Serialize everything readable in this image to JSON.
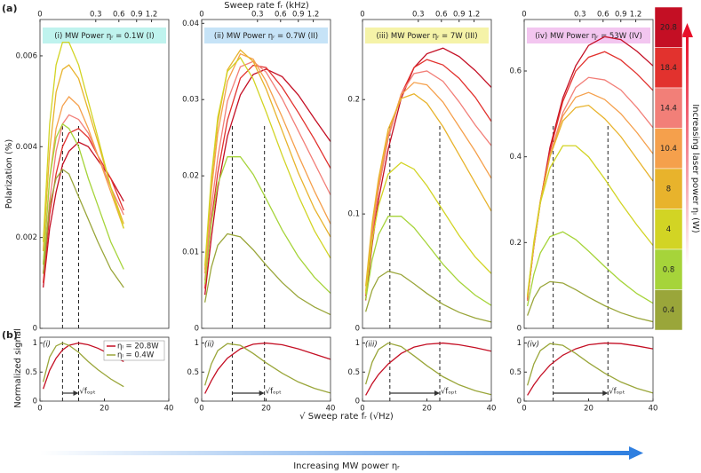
{
  "figure": {
    "label_a": "(a)",
    "label_b": "(b)",
    "top_axis_label": "Sweep rate fᵣ (kHz)",
    "x_label": "√ Sweep rate fᵣ (√Hz)",
    "y_label_top": "Polarization (%)",
    "y_label_bottom": "Normalized signal",
    "laser_arrow_label": "Increasing laser power ηₗ (W)",
    "mw_arrow_label": "Increasing MW power ηᵣ"
  },
  "chart_data": [
    {
      "type": "line",
      "title": "(i) MW Power ηᵣ = 0.1W (I)",
      "title_bg": "#bff3ee",
      "x": [
        1,
        3,
        5,
        7,
        9,
        12,
        15,
        18,
        22,
        26
      ],
      "xlim": [
        0,
        40
      ],
      "ylim": [
        0,
        0.0068
      ],
      "yticks": [
        0,
        0.002,
        0.004,
        0.006
      ],
      "x2ticks": [
        0,
        0.3,
        0.6,
        0.9,
        1.2
      ],
      "x2scale": "sqrt",
      "vlines": [
        7,
        12
      ],
      "series": [
        {
          "name": "20.8",
          "color": "#c40f24",
          "values": [
            0.0009,
            0.0022,
            0.003,
            0.0036,
            0.0039,
            0.0041,
            0.004,
            0.0037,
            0.0033,
            0.0028
          ]
        },
        {
          "name": "18.4",
          "color": "#e2322e",
          "values": [
            0.001,
            0.0025,
            0.0034,
            0.004,
            0.0043,
            0.0044,
            0.0042,
            0.0038,
            0.0033,
            0.0026
          ]
        },
        {
          "name": "14.4",
          "color": "#f27f78",
          "values": [
            0.0012,
            0.0028,
            0.0039,
            0.0045,
            0.0047,
            0.0046,
            0.0043,
            0.0038,
            0.0031,
            0.0025
          ]
        },
        {
          "name": "10.4",
          "color": "#f5a04c",
          "values": [
            0.0014,
            0.0033,
            0.0044,
            0.0049,
            0.0051,
            0.0049,
            0.0044,
            0.0038,
            0.003,
            0.0022
          ]
        },
        {
          "name": "8",
          "color": "#e8b32c",
          "values": [
            0.0017,
            0.0039,
            0.0052,
            0.0057,
            0.0058,
            0.0055,
            0.0048,
            0.0041,
            0.0031,
            0.0023
          ]
        },
        {
          "name": "4",
          "color": "#d2d424",
          "values": [
            0.0019,
            0.0045,
            0.0058,
            0.0063,
            0.0063,
            0.0058,
            0.005,
            0.0042,
            0.0031,
            0.0022
          ]
        },
        {
          "name": "0.8",
          "color": "#a6d43a",
          "values": [
            0.0014,
            0.0033,
            0.0042,
            0.0045,
            0.0044,
            0.004,
            0.0033,
            0.0027,
            0.0019,
            0.0013
          ]
        },
        {
          "name": "0.4",
          "color": "#9aa63a",
          "values": [
            0.0012,
            0.0027,
            0.0033,
            0.0035,
            0.0034,
            0.0029,
            0.0024,
            0.0019,
            0.0013,
            0.0009
          ]
        }
      ]
    },
    {
      "type": "line",
      "title": "(ii) MW Power ηᵣ = 0.7W (II)",
      "title_bg": "#c6e3f7",
      "x": [
        1,
        3,
        5,
        8,
        12,
        16,
        20,
        25,
        30,
        35,
        40
      ],
      "xlim": [
        0,
        40
      ],
      "ylim": [
        0,
        0.0405
      ],
      "yticks": [
        0,
        0.01,
        0.02,
        0.03,
        0.04
      ],
      "x2ticks": [
        0,
        0.3,
        0.6,
        0.9,
        1.2
      ],
      "x2scale": "sqrt",
      "vlines": [
        9.5,
        19.5
      ],
      "series": [
        {
          "color": "#c40f24",
          "values": [
            0.0044,
            0.0119,
            0.0184,
            0.0252,
            0.0306,
            0.0333,
            0.034,
            0.033,
            0.0306,
            0.0275,
            0.0245
          ]
        },
        {
          "color": "#e2322e",
          "values": [
            0.0052,
            0.0141,
            0.0204,
            0.0273,
            0.0328,
            0.0345,
            0.0342,
            0.0316,
            0.0283,
            0.0248,
            0.021
          ]
        },
        {
          "color": "#f27f78",
          "values": [
            0.0063,
            0.0158,
            0.0224,
            0.0298,
            0.0343,
            0.035,
            0.0336,
            0.0301,
            0.0259,
            0.0217,
            0.0175
          ]
        },
        {
          "color": "#f5a04c",
          "values": [
            0.0072,
            0.018,
            0.0256,
            0.0324,
            0.036,
            0.0353,
            0.0324,
            0.0277,
            0.0227,
            0.018,
            0.0137
          ]
        },
        {
          "color": "#e8b32c",
          "values": [
            0.0077,
            0.0193,
            0.027,
            0.0339,
            0.0365,
            0.035,
            0.0314,
            0.0259,
            0.0204,
            0.0157,
            0.012
          ]
        },
        {
          "color": "#d2d424",
          "values": [
            0.0082,
            0.0199,
            0.0277,
            0.0337,
            0.0355,
            0.0327,
            0.0284,
            0.0227,
            0.0174,
            0.0128,
            0.0092
          ]
        },
        {
          "color": "#a6d43a",
          "values": [
            0.0058,
            0.0138,
            0.0189,
            0.0225,
            0.0225,
            0.0202,
            0.017,
            0.0129,
            0.0094,
            0.0067,
            0.0046
          ]
        },
        {
          "color": "#9aa63a",
          "values": [
            0.0034,
            0.008,
            0.0109,
            0.0124,
            0.012,
            0.0103,
            0.0083,
            0.006,
            0.0041,
            0.0028,
            0.0018
          ]
        }
      ]
    },
    {
      "type": "line",
      "title": "(iii) MW Power ηᵣ = 7W (III)",
      "title_bg": "#f5f3a8",
      "x": [
        1,
        3,
        5,
        8,
        12,
        16,
        20,
        25,
        30,
        35,
        40
      ],
      "xlim": [
        0,
        40
      ],
      "ylim": [
        0,
        0.27
      ],
      "yticks": [
        0,
        0.1,
        0.2
      ],
      "x2ticks": [
        0,
        0.3,
        0.6,
        0.9,
        1.2
      ],
      "x2scale": "sqrt",
      "vlines": [
        8.5,
        24
      ],
      "series": [
        {
          "color": "#c40f24",
          "values": [
            0.0245,
            0.0735,
            0.1127,
            0.1568,
            0.2009,
            0.2279,
            0.2401,
            0.245,
            0.2377,
            0.2254,
            0.2107
          ]
        },
        {
          "color": "#e2322e",
          "values": [
            0.0282,
            0.0776,
            0.1222,
            0.1669,
            0.2045,
            0.228,
            0.235,
            0.2303,
            0.2186,
            0.2021,
            0.181
          ]
        },
        {
          "color": "#f27f78",
          "values": [
            0.0293,
            0.0833,
            0.1215,
            0.1665,
            0.2048,
            0.2228,
            0.225,
            0.216,
            0.198,
            0.1778,
            0.1598
          ]
        },
        {
          "color": "#f5a04c",
          "values": [
            0.0323,
            0.0882,
            0.1269,
            0.1699,
            0.2043,
            0.215,
            0.2129,
            0.1978,
            0.1763,
            0.1548,
            0.1312
          ]
        },
        {
          "color": "#e8b32c",
          "values": [
            0.0369,
            0.0923,
            0.1312,
            0.1743,
            0.2009,
            0.205,
            0.1968,
            0.1763,
            0.1517,
            0.1271,
            0.1025
          ]
        },
        {
          "color": "#d2d424",
          "values": [
            0.0305,
            0.0769,
            0.1073,
            0.1349,
            0.145,
            0.1392,
            0.1247,
            0.103,
            0.0812,
            0.0624,
            0.0479
          ]
        },
        {
          "color": "#a6d43a",
          "values": [
            0.025,
            0.06,
            0.082,
            0.098,
            0.098,
            0.088,
            0.074,
            0.056,
            0.041,
            0.029,
            0.02
          ]
        },
        {
          "color": "#9aa63a",
          "values": [
            0.0145,
            0.0335,
            0.0445,
            0.05,
            0.047,
            0.039,
            0.0305,
            0.021,
            0.014,
            0.009,
            0.0055
          ]
        }
      ]
    },
    {
      "type": "line",
      "title": "(iv) MW Power ηᵣ = 53W (IV)",
      "title_bg": "#f3c6f0",
      "x": [
        1,
        3,
        5,
        8,
        12,
        16,
        20,
        25,
        30,
        35,
        40
      ],
      "xlim": [
        0,
        40
      ],
      "ylim": [
        0,
        0.72
      ],
      "yticks": [
        0,
        0.2,
        0.4,
        0.6
      ],
      "x2ticks": [
        0,
        0.3,
        0.6,
        0.9,
        1.2
      ],
      "x2scale": "sqrt",
      "vlines": [
        9,
        26
      ],
      "series": [
        {
          "color": "#c40f24",
          "values": [
            0.068,
            0.1904,
            0.2924,
            0.4216,
            0.5372,
            0.612,
            0.6596,
            0.68,
            0.6732,
            0.646,
            0.612
          ]
        },
        {
          "color": "#e2322e",
          "values": [
            0.0645,
            0.1935,
            0.2967,
            0.4128,
            0.5289,
            0.5999,
            0.6321,
            0.645,
            0.6257,
            0.5934,
            0.5547
          ]
        },
        {
          "color": "#f27f78",
          "values": [
            0.0644,
            0.1931,
            0.2925,
            0.4037,
            0.5031,
            0.5616,
            0.585,
            0.5792,
            0.5558,
            0.5148,
            0.468
          ]
        },
        {
          "color": "#f5a04c",
          "values": [
            0.0715,
            0.1925,
            0.2915,
            0.4015,
            0.495,
            0.539,
            0.55,
            0.5335,
            0.5005,
            0.4565,
            0.407
          ]
        },
        {
          "color": "#e8b32c",
          "values": [
            0.0728,
            0.2028,
            0.2964,
            0.4004,
            0.4836,
            0.5148,
            0.52,
            0.4888,
            0.4472,
            0.3952,
            0.3432
          ]
        },
        {
          "color": "#d2d424",
          "values": [
            0.0774,
            0.1978,
            0.2924,
            0.3741,
            0.4257,
            0.4257,
            0.3999,
            0.3483,
            0.2924,
            0.2408,
            0.1935
          ]
        },
        {
          "color": "#a6d43a",
          "values": [
            0.0518,
            0.126,
            0.1755,
            0.2138,
            0.225,
            0.207,
            0.18,
            0.144,
            0.1103,
            0.081,
            0.0585
          ]
        },
        {
          "color": "#9aa63a",
          "values": [
            0.0297,
            0.0704,
            0.0957,
            0.1089,
            0.1056,
            0.0902,
            0.0726,
            0.0528,
            0.0363,
            0.0242,
            0.0154
          ]
        }
      ]
    },
    {
      "type": "line",
      "panel_label": "(i)",
      "annotation": "√fₒₚₜ",
      "x": [
        1,
        3,
        5,
        7,
        9,
        12,
        15,
        18,
        22,
        26
      ],
      "xlim": [
        0,
        40
      ],
      "xticks": [
        0,
        20,
        40
      ],
      "ylim": [
        0,
        1.1
      ],
      "yticks": [
        0,
        0.5,
        1
      ],
      "vlines": [
        7,
        12
      ],
      "series": [
        {
          "name": "ηₗ = 20.8W",
          "color": "#c40f24",
          "values": [
            0.21,
            0.53,
            0.74,
            0.88,
            0.96,
            1,
            0.97,
            0.91,
            0.8,
            0.68
          ]
        },
        {
          "name": "ηₗ = 0.4W",
          "color": "#9aa63a",
          "values": [
            0.33,
            0.76,
            0.95,
            1,
            0.96,
            0.84,
            0.68,
            0.54,
            0.38,
            0.25
          ]
        }
      ]
    },
    {
      "type": "line",
      "panel_label": "(ii)",
      "annotation": "√fₒₚₜ",
      "x": [
        1,
        3,
        5,
        8,
        12,
        16,
        20,
        25,
        30,
        35,
        40
      ],
      "xlim": [
        0,
        40
      ],
      "xticks": [
        0,
        20,
        40
      ],
      "ylim": [
        0,
        1.1
      ],
      "yticks": [
        0,
        0.5,
        1
      ],
      "vlines": [
        9.5,
        19.5
      ],
      "series": [
        {
          "color": "#c40f24",
          "values": [
            0.13,
            0.35,
            0.54,
            0.74,
            0.9,
            0.98,
            1,
            0.97,
            0.9,
            0.81,
            0.72
          ]
        },
        {
          "color": "#9aa63a",
          "values": [
            0.27,
            0.64,
            0.87,
            0.99,
            0.96,
            0.82,
            0.66,
            0.48,
            0.33,
            0.22,
            0.14
          ]
        }
      ]
    },
    {
      "type": "line",
      "panel_label": "(iii)",
      "annotation": "√fₒₚₜ",
      "x": [
        1,
        3,
        5,
        8,
        12,
        16,
        20,
        25,
        30,
        35,
        40
      ],
      "xlim": [
        0,
        40
      ],
      "xticks": [
        0,
        20,
        40
      ],
      "ylim": [
        0,
        1.1
      ],
      "yticks": [
        0,
        0.5,
        1
      ],
      "vlines": [
        8.5,
        24
      ],
      "series": [
        {
          "color": "#c40f24",
          "values": [
            0.1,
            0.3,
            0.46,
            0.64,
            0.82,
            0.93,
            0.98,
            1,
            0.97,
            0.92,
            0.86
          ]
        },
        {
          "color": "#9aa63a",
          "values": [
            0.29,
            0.67,
            0.89,
            1,
            0.94,
            0.78,
            0.61,
            0.42,
            0.28,
            0.18,
            0.11
          ]
        }
      ]
    },
    {
      "type": "line",
      "panel_label": "(iv)",
      "annotation": "√fₒₚₜ",
      "x": [
        1,
        3,
        5,
        8,
        12,
        16,
        20,
        25,
        30,
        35,
        40
      ],
      "xlim": [
        0,
        40
      ],
      "xticks": [
        0,
        20,
        40
      ],
      "ylim": [
        0,
        1.1
      ],
      "yticks": [
        0,
        0.5,
        1
      ],
      "vlines": [
        9,
        26
      ],
      "series": [
        {
          "color": "#c40f24",
          "values": [
            0.1,
            0.28,
            0.43,
            0.62,
            0.79,
            0.9,
            0.97,
            1,
            0.99,
            0.95,
            0.9
          ]
        },
        {
          "color": "#9aa63a",
          "values": [
            0.27,
            0.64,
            0.87,
            0.99,
            0.96,
            0.82,
            0.66,
            0.48,
            0.33,
            0.22,
            0.14
          ]
        }
      ]
    }
  ]
}
